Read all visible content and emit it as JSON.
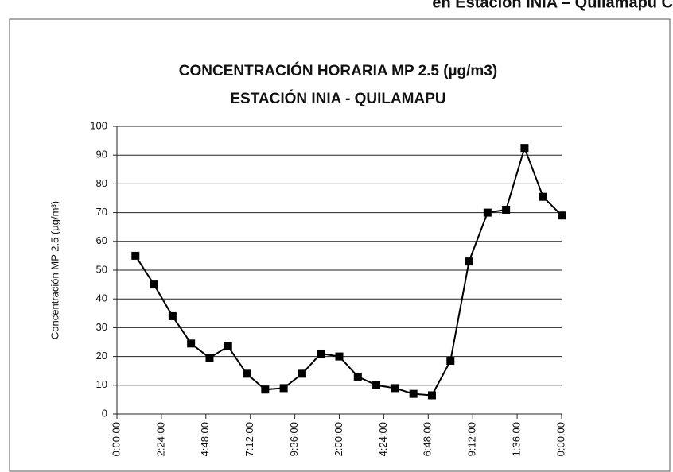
{
  "page_heading": "en Estación INIA – Quilamapu C",
  "chart_data": {
    "type": "line",
    "title": "CONCENTRACIÓN HORARIA MP 2.5 (µg/m3)",
    "subtitle": "ESTACIÓN INIA - QUILAMAPU",
    "y_label": "Concentración MP 2.5 (µg/m³)",
    "x": [
      1,
      2,
      3,
      4,
      5,
      6,
      7,
      8,
      9,
      10,
      11,
      12,
      13,
      14,
      15,
      16,
      17,
      18,
      19,
      20,
      21,
      22,
      23,
      24
    ],
    "series": [
      {
        "name": "MP 2.5",
        "color": "#000000",
        "values": [
          55,
          45,
          34,
          24.5,
          19.5,
          23.5,
          14,
          8.5,
          9,
          14,
          21,
          20,
          13,
          10,
          9,
          7,
          6.5,
          18.5,
          53,
          70,
          71,
          92.5,
          75.5,
          69
        ]
      }
    ],
    "xlim": [
      0,
      24
    ],
    "xticks": [
      {
        "value": 0,
        "label": "0:00:00"
      },
      {
        "value": 2.4,
        "label": "2:24:00"
      },
      {
        "value": 4.8,
        "label": "4:48:00"
      },
      {
        "value": 7.2,
        "label": "7:12:00"
      },
      {
        "value": 9.6,
        "label": "9:36:00"
      },
      {
        "value": 12,
        "label": "2:00:00"
      },
      {
        "value": 14.4,
        "label": "4:24:00"
      },
      {
        "value": 16.8,
        "label": "6:48:00"
      },
      {
        "value": 19.2,
        "label": "9:12:00"
      },
      {
        "value": 21.6,
        "label": "1:36:00"
      },
      {
        "value": 24,
        "label": "0:00:00"
      }
    ],
    "ylim": [
      0,
      100
    ],
    "yticks": [
      0,
      10,
      20,
      30,
      40,
      50,
      60,
      70,
      80,
      90,
      100
    ],
    "grid": true
  }
}
